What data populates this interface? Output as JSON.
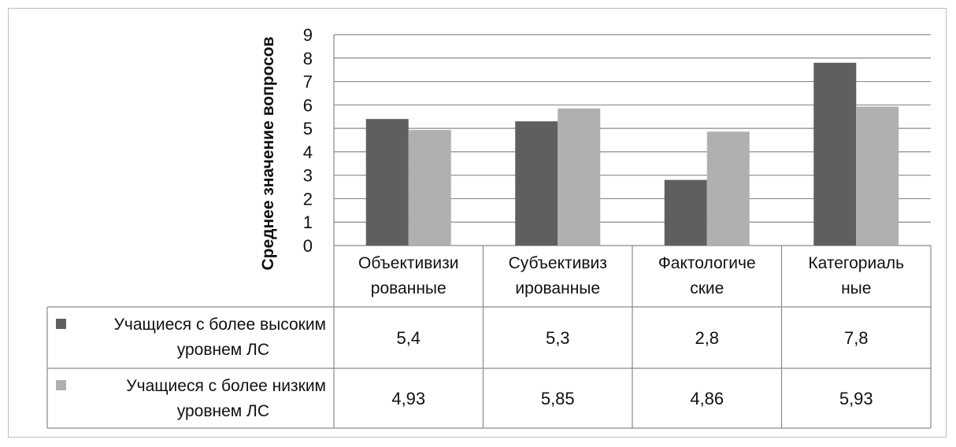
{
  "chart_data": {
    "type": "bar",
    "ylabel": "Среднее значение вопросов",
    "ylim": [
      0,
      9
    ],
    "yticks": [
      0,
      1,
      2,
      3,
      4,
      5,
      6,
      7,
      8,
      9
    ],
    "grid": true,
    "legend": "data-table",
    "categories": [
      {
        "line1": "Объективизи",
        "line2": "рованные"
      },
      {
        "line1": "Субъективиз",
        "line2": "ированные"
      },
      {
        "line1": "Фактологиче",
        "line2": "ские"
      },
      {
        "line1": "Категориаль",
        "line2": "ные"
      }
    ],
    "series": [
      {
        "name_line1": "Учащиеся с более высоким",
        "name_line2": "уровнем ЛС",
        "color": "#5f5f5f",
        "values": [
          5.4,
          5.3,
          2.8,
          7.8
        ],
        "labels": [
          "5,4",
          "5,3",
          "2,8",
          "7,8"
        ]
      },
      {
        "name_line1": "Учащиеся с более низким",
        "name_line2": "уровнем ЛС",
        "color": "#b0b0b0",
        "values": [
          4.93,
          5.85,
          4.86,
          5.93
        ],
        "labels": [
          "4,93",
          "5,85",
          "4,86",
          "5,93"
        ]
      }
    ]
  }
}
